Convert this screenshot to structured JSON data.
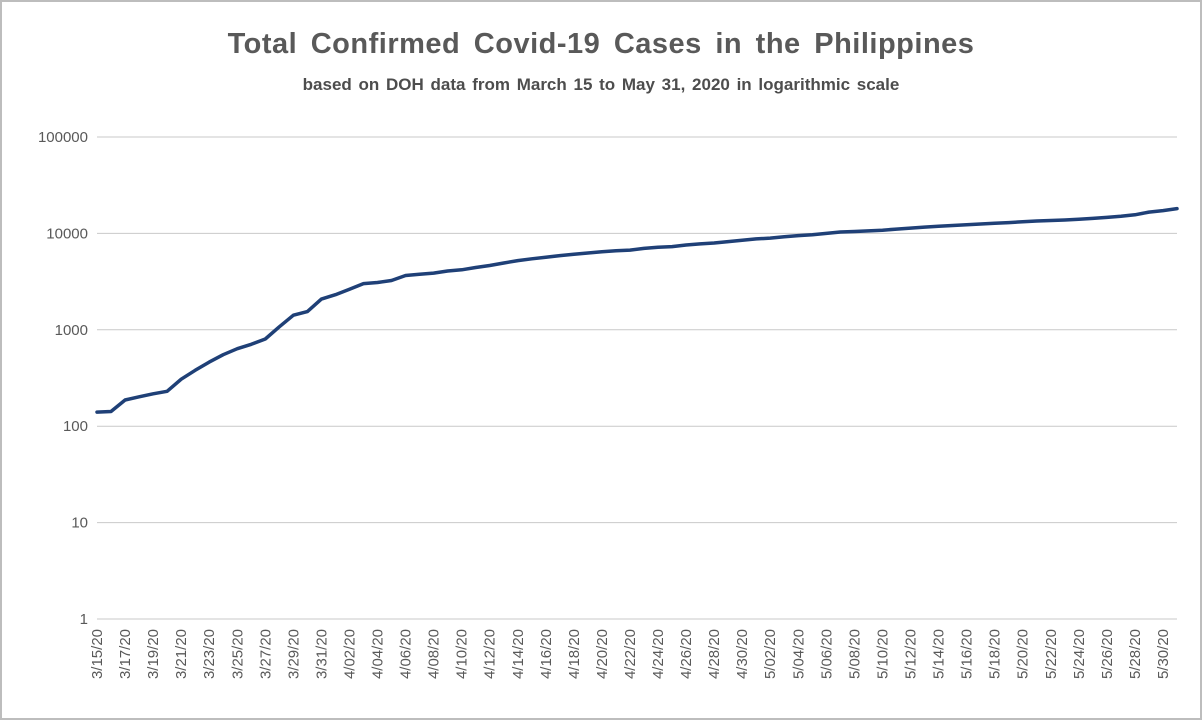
{
  "chart_data": {
    "type": "line",
    "title": "Total Confirmed Covid-19 Cases in the Philippines",
    "subtitle": "based on DOH data from March 15 to May 31, 2020 in logarithmic scale",
    "y_scale": "log",
    "ylim": [
      1,
      100000
    ],
    "grid": true,
    "legend": "none",
    "y_tick_labels": [
      "1",
      "10",
      "100",
      "1000",
      "10000",
      "100000"
    ],
    "y_ticks": [
      1,
      10,
      100,
      1000,
      10000,
      100000
    ],
    "x_tick_every": 2,
    "x_tick_labels": [
      "3/15/20",
      "3/17/20",
      "3/19/20",
      "3/21/20",
      "3/23/20",
      "3/25/20",
      "3/27/20",
      "3/29/20",
      "3/31/20",
      "4/02/20",
      "4/04/20",
      "4/06/20",
      "4/08/20",
      "4/10/20",
      "4/12/20",
      "4/14/20",
      "4/16/20",
      "4/18/20",
      "4/20/20",
      "4/22/20",
      "4/24/20",
      "4/26/20",
      "4/28/20",
      "4/30/20",
      "5/02/20",
      "5/04/20",
      "5/06/20",
      "5/08/20",
      "5/10/20",
      "5/12/20",
      "5/14/20",
      "5/16/20",
      "5/18/20",
      "5/20/20",
      "5/22/20",
      "5/24/20",
      "5/26/20",
      "5/28/20",
      "5/30/20"
    ],
    "x": [
      "3/15/20",
      "3/16/20",
      "3/17/20",
      "3/18/20",
      "3/19/20",
      "3/20/20",
      "3/21/20",
      "3/22/20",
      "3/23/20",
      "3/24/20",
      "3/25/20",
      "3/26/20",
      "3/27/20",
      "3/28/20",
      "3/29/20",
      "3/30/20",
      "3/31/20",
      "4/01/20",
      "4/02/20",
      "4/03/20",
      "4/04/20",
      "4/05/20",
      "4/06/20",
      "4/07/20",
      "4/08/20",
      "4/09/20",
      "4/10/20",
      "4/11/20",
      "4/12/20",
      "4/13/20",
      "4/14/20",
      "4/15/20",
      "4/16/20",
      "4/17/20",
      "4/18/20",
      "4/19/20",
      "4/20/20",
      "4/21/20",
      "4/22/20",
      "4/23/20",
      "4/24/20",
      "4/25/20",
      "4/26/20",
      "4/27/20",
      "4/28/20",
      "4/29/20",
      "4/30/20",
      "5/01/20",
      "5/02/20",
      "5/03/20",
      "5/04/20",
      "5/05/20",
      "5/06/20",
      "5/07/20",
      "5/08/20",
      "5/09/20",
      "5/10/20",
      "5/11/20",
      "5/12/20",
      "5/13/20",
      "5/14/20",
      "5/15/20",
      "5/16/20",
      "5/17/20",
      "5/18/20",
      "5/19/20",
      "5/20/20",
      "5/21/20",
      "5/22/20",
      "5/23/20",
      "5/24/20",
      "5/25/20",
      "5/26/20",
      "5/27/20",
      "5/28/20",
      "5/29/20",
      "5/30/20",
      "5/31/20"
    ],
    "series": [
      {
        "name": "Total confirmed cases",
        "color": "#1f4077",
        "values": [
          140,
          142,
          187,
          202,
          217,
          230,
          307,
          380,
          462,
          552,
          636,
          707,
          803,
          1075,
          1418,
          1546,
          2084,
          2311,
          2633,
          3018,
          3094,
          3246,
          3660,
          3764,
          3870,
          4076,
          4195,
          4428,
          4648,
          4932,
          5223,
          5453,
          5660,
          5878,
          6087,
          6259,
          6459,
          6599,
          6710,
          6981,
          7192,
          7294,
          7579,
          7777,
          7958,
          8212,
          8488,
          8772,
          8928,
          9223,
          9485,
          9684,
          10004,
          10343,
          10463,
          10610,
          10794,
          11086,
          11350,
          11618,
          11876,
          12091,
          12305,
          12513,
          12718,
          12942,
          13221,
          13434,
          13597,
          13777,
          14035,
          14319,
          14669,
          15049,
          15588,
          16634,
          17224,
          18086
        ]
      }
    ]
  }
}
